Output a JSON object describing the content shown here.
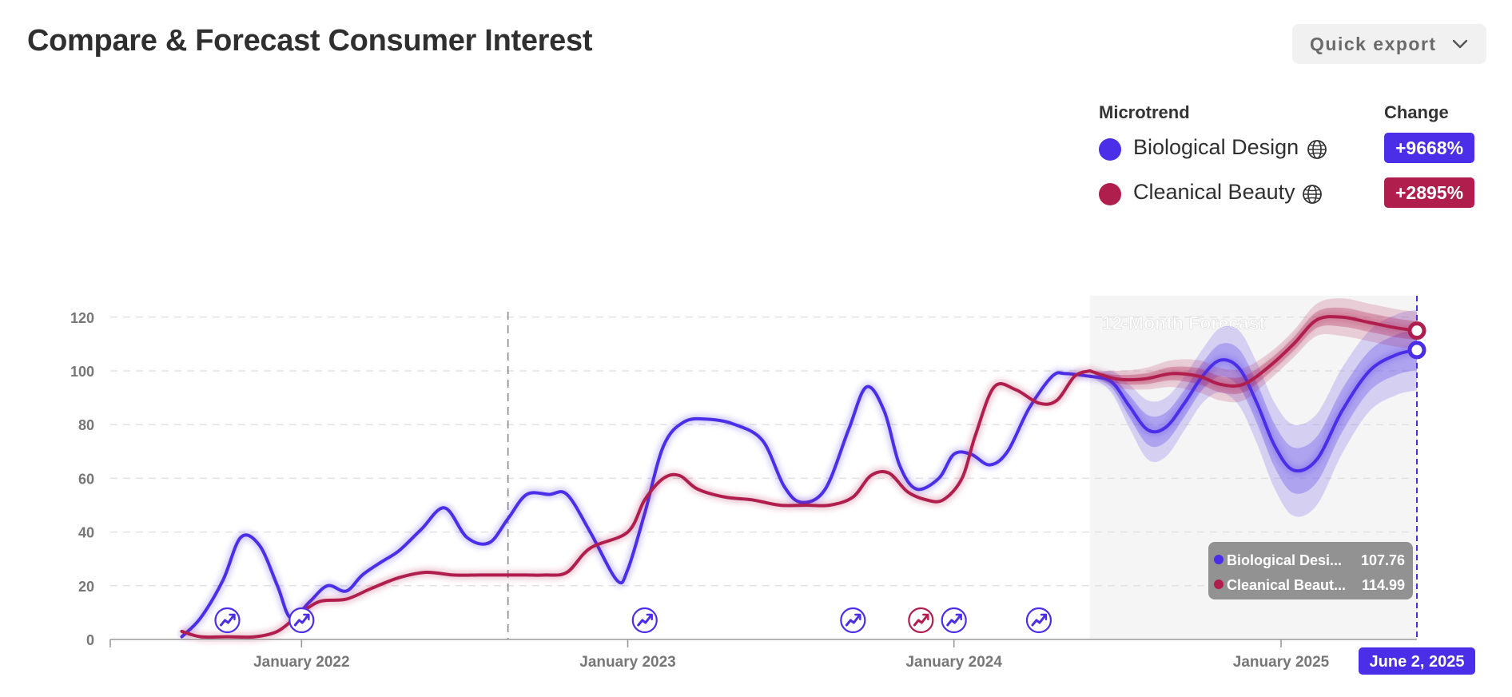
{
  "header": {
    "title": "Compare & Forecast Consumer Interest",
    "export_label": "Quick export",
    "export_icon": "chevron-down-icon"
  },
  "legend": {
    "microtrend_header": "Microtrend",
    "change_header": "Change",
    "items": [
      {
        "name": "Biological Design",
        "change": "+9668%",
        "color": "#4a2ee8",
        "icon": "globe-icon"
      },
      {
        "name": "Cleanical Beauty",
        "change": "+2895%",
        "color": "#b01e4e",
        "icon": "globe-icon"
      }
    ]
  },
  "tooltip": {
    "rows": [
      {
        "label": "Biological Desi...",
        "value": "107.76"
      },
      {
        "label": "Cleanical Beaut...",
        "value": "114.99"
      }
    ]
  },
  "colors": {
    "bio": "#4a2ee8",
    "clean": "#b01e4e",
    "grid": "#e2e2e2",
    "axis_text": "#777777",
    "forecast_bg": "#f5f5f5"
  },
  "chart_data": {
    "type": "line",
    "xlim": [
      "2021-06-01",
      "2025-06-02"
    ],
    "ylim": [
      0,
      125
    ],
    "yticks": [
      0,
      20,
      40,
      60,
      80,
      100,
      120
    ],
    "xticks": [
      "2022-01-01",
      "2023-01-01",
      "2024-01-01",
      "2025-01-01"
    ],
    "xtick_labels": [
      "January 2022",
      "January 2023",
      "January 2024",
      "January 2025"
    ],
    "current_date_label": "June 2, 2025",
    "forecast_label": "12-Month Forecast",
    "forecast_start": "2024-06-01",
    "forecast_end": "2025-06-02",
    "marker_line_date": "2022-08-20",
    "grid": true,
    "series": [
      {
        "name": "Biological Design",
        "color": "#4a2ee8",
        "dates": [
          "2021-08-20",
          "2021-09-10",
          "2021-10-05",
          "2021-10-25",
          "2021-11-15",
          "2021-12-05",
          "2021-12-20",
          "2022-01-10",
          "2022-01-30",
          "2022-02-20",
          "2022-03-10",
          "2022-04-01",
          "2022-04-20",
          "2022-05-15",
          "2022-06-10",
          "2022-07-05",
          "2022-07-30",
          "2022-08-20",
          "2022-09-10",
          "2022-10-05",
          "2022-10-25",
          "2022-11-20",
          "2022-12-20",
          "2023-01-01",
          "2023-01-20",
          "2023-02-10",
          "2023-03-05",
          "2023-04-01",
          "2023-05-01",
          "2023-06-01",
          "2023-06-25",
          "2023-07-15",
          "2023-08-10",
          "2023-09-05",
          "2023-09-25",
          "2023-10-15",
          "2023-11-01",
          "2023-11-20",
          "2023-12-15",
          "2024-01-01",
          "2024-01-20",
          "2024-02-10",
          "2024-03-01",
          "2024-03-25",
          "2024-04-20",
          "2024-05-05",
          "2024-06-01"
        ],
        "values": [
          1,
          8,
          22,
          38,
          35,
          20,
          8,
          14,
          20,
          18,
          24,
          29,
          33,
          41,
          49,
          38,
          36,
          45,
          54,
          54,
          54,
          40,
          22,
          26,
          47,
          72,
          81,
          82,
          80,
          74,
          57,
          51,
          56,
          78,
          94,
          85,
          65,
          56,
          60,
          69,
          69,
          65,
          70,
          86,
          98,
          99,
          98
        ]
      },
      {
        "name": "Biological Design forecast",
        "color": "#4a2ee8",
        "dates": [
          "2024-06-01",
          "2024-06-25",
          "2024-07-15",
          "2024-08-05",
          "2024-08-25",
          "2024-09-15",
          "2024-10-05",
          "2024-10-25",
          "2024-11-15",
          "2024-12-05",
          "2024-12-25",
          "2025-01-15",
          "2025-02-10",
          "2025-03-10",
          "2025-04-10",
          "2025-05-10",
          "2025-06-02"
        ],
        "values": [
          98,
          96,
          87,
          78,
          79,
          88,
          98,
          104,
          101,
          88,
          72,
          63,
          67,
          85,
          100,
          106,
          107.76
        ]
      },
      {
        "name": "Cleanical Beauty",
        "color": "#b01e4e",
        "dates": [
          "2021-08-20",
          "2021-09-10",
          "2021-10-10",
          "2021-11-10",
          "2021-12-05",
          "2021-12-25",
          "2022-01-20",
          "2022-02-20",
          "2022-03-20",
          "2022-04-20",
          "2022-05-20",
          "2022-06-20",
          "2022-07-20",
          "2022-08-20",
          "2022-09-10",
          "2022-10-01",
          "2022-10-25",
          "2022-11-20",
          "2023-01-01",
          "2023-01-20",
          "2023-02-10",
          "2023-02-28",
          "2023-03-20",
          "2023-04-20",
          "2023-05-20",
          "2023-06-20",
          "2023-07-20",
          "2023-08-15",
          "2023-09-10",
          "2023-09-30",
          "2023-10-20",
          "2023-11-10",
          "2023-12-01",
          "2023-12-20",
          "2024-01-10",
          "2024-01-25",
          "2024-02-15",
          "2024-03-10",
          "2024-04-05",
          "2024-04-25",
          "2024-05-15",
          "2024-06-01"
        ],
        "values": [
          3,
          1,
          1,
          1,
          3,
          8,
          14,
          15,
          19,
          23,
          25,
          24,
          24,
          24,
          24,
          24,
          25,
          34,
          40,
          52,
          60,
          61,
          56,
          53,
          52,
          50,
          50,
          50,
          53,
          61,
          62,
          55,
          52,
          52,
          60,
          76,
          94,
          93,
          88,
          89,
          98,
          100
        ]
      },
      {
        "name": "Cleanical Beauty forecast",
        "color": "#b01e4e",
        "dates": [
          "2024-06-01",
          "2024-07-01",
          "2024-08-01",
          "2024-09-01",
          "2024-10-01",
          "2024-10-25",
          "2024-11-20",
          "2024-12-20",
          "2025-01-15",
          "2025-02-10",
          "2025-03-10",
          "2025-04-10",
          "2025-05-10",
          "2025-06-02"
        ],
        "values": [
          100,
          97,
          97,
          99,
          98,
          95,
          95,
          102,
          110,
          119,
          120,
          118,
          116,
          114.99
        ]
      }
    ],
    "event_markers": [
      {
        "date": "2021-10-10",
        "color": "#4a2ee8"
      },
      {
        "date": "2022-01-01",
        "color": "#4a2ee8"
      },
      {
        "date": "2023-01-20",
        "color": "#4a2ee8"
      },
      {
        "date": "2023-09-10",
        "color": "#4a2ee8"
      },
      {
        "date": "2023-11-25",
        "color": "#b01e4e"
      },
      {
        "date": "2024-01-01",
        "color": "#4a2ee8"
      },
      {
        "date": "2024-04-05",
        "color": "#4a2ee8"
      }
    ]
  }
}
